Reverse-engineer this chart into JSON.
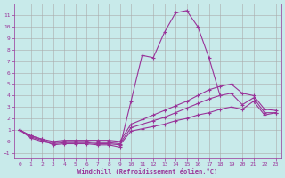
{
  "xlabel": "Windchill (Refroidissement éolien,°C)",
  "bg_color": "#c8eaea",
  "grid_color": "#aaaaaa",
  "line_color": "#993399",
  "xlim": [
    -0.5,
    23.5
  ],
  "ylim": [
    -1.5,
    12.0
  ],
  "xticks": [
    0,
    1,
    2,
    3,
    4,
    5,
    6,
    7,
    8,
    9,
    10,
    11,
    12,
    13,
    14,
    15,
    16,
    17,
    18,
    19,
    20,
    21,
    22,
    23
  ],
  "yticks": [
    -1,
    0,
    1,
    2,
    3,
    4,
    5,
    6,
    7,
    8,
    9,
    10,
    11
  ],
  "series": [
    {
      "x": [
        0,
        1,
        2,
        3,
        4,
        5,
        6,
        7,
        8,
        9,
        10,
        11,
        12,
        13,
        14,
        15,
        16,
        17,
        18
      ],
      "y": [
        1,
        0.5,
        0.2,
        -0.3,
        -0.2,
        -0.2,
        -0.2,
        -0.3,
        -0.3,
        -0.5,
        3.5,
        7.5,
        7.3,
        9.5,
        11.2,
        11.4,
        10.0,
        7.3,
        4.0
      ]
    },
    {
      "x": [
        0,
        1,
        2,
        3,
        4,
        5,
        6,
        7,
        8,
        9,
        10,
        11,
        12,
        13,
        14,
        15,
        16,
        17,
        18,
        19,
        20,
        21,
        22,
        23
      ],
      "y": [
        1.0,
        0.3,
        0.0,
        -0.2,
        -0.1,
        -0.1,
        -0.1,
        -0.2,
        -0.2,
        -0.3,
        0.9,
        1.1,
        1.3,
        1.5,
        1.8,
        2.0,
        2.3,
        2.5,
        2.8,
        3.0,
        2.8,
        3.5,
        2.3,
        2.5
      ]
    },
    {
      "x": [
        0,
        1,
        2,
        3,
        4,
        5,
        6,
        7,
        8,
        9,
        10,
        11,
        12,
        13,
        14,
        15,
        16,
        17,
        18,
        19,
        20,
        21,
        22,
        23
      ],
      "y": [
        1.0,
        0.4,
        0.1,
        -0.1,
        0.0,
        0.0,
        0.0,
        -0.1,
        -0.1,
        -0.2,
        1.2,
        1.5,
        1.8,
        2.1,
        2.5,
        2.9,
        3.3,
        3.7,
        4.0,
        4.2,
        3.2,
        3.8,
        2.5,
        2.5
      ]
    },
    {
      "x": [
        0,
        1,
        2,
        3,
        4,
        5,
        6,
        7,
        8,
        9,
        10,
        11,
        12,
        13,
        14,
        15,
        16,
        17,
        18,
        19,
        20,
        21,
        22,
        23
      ],
      "y": [
        1.0,
        0.5,
        0.2,
        0.0,
        0.1,
        0.1,
        0.1,
        0.1,
        0.1,
        0.0,
        1.5,
        1.9,
        2.3,
        2.7,
        3.1,
        3.5,
        4.0,
        4.5,
        4.8,
        5.0,
        4.2,
        4.0,
        2.8,
        2.7
      ]
    }
  ]
}
